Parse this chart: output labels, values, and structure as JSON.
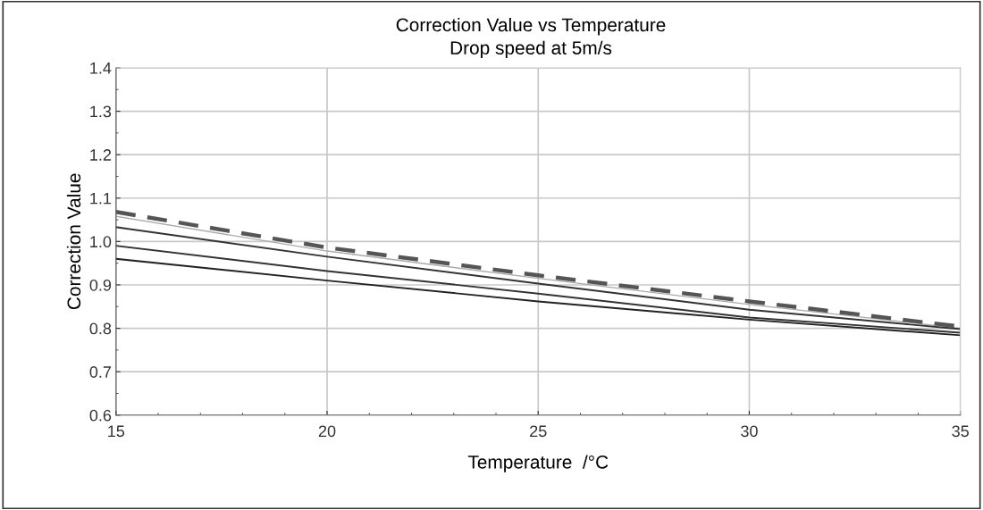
{
  "chart_data": {
    "type": "line",
    "title": "Correction Value vs Temperature",
    "subtitle": "Drop speed at 5m/s",
    "xlabel": "Temperature  /°C",
    "ylabel": "Correction Value",
    "x": [
      15,
      20,
      25,
      30,
      35
    ],
    "series": [
      {
        "color": "#aaaaaa",
        "line_style": "solid",
        "values": [
          1.058,
          0.978,
          0.915,
          0.855,
          0.8
        ]
      },
      {
        "color": "#555555",
        "line_style": "dashed",
        "values": [
          1.068,
          0.986,
          0.922,
          0.862,
          0.804
        ]
      },
      {
        "color": "#333333",
        "line_style": "solid",
        "values": [
          1.033,
          0.965,
          0.903,
          0.843,
          0.798
        ]
      },
      {
        "color": "#333333",
        "line_style": "solid",
        "values": [
          0.99,
          0.932,
          0.88,
          0.825,
          0.79
        ]
      },
      {
        "color": "#222222",
        "line_style": "solid",
        "values": [
          0.96,
          0.91,
          0.862,
          0.82,
          0.784
        ]
      }
    ],
    "xlim": [
      15,
      35
    ],
    "xticks": [
      15,
      20,
      25,
      30,
      35
    ],
    "ylim": [
      0.6,
      1.4
    ],
    "yticks": [
      {
        "value": 0.6,
        "label": "0.6"
      },
      {
        "value": 0.7,
        "label": "0.7"
      },
      {
        "value": 0.8,
        "label": "0.8"
      },
      {
        "value": 0.9,
        "label": "0.9"
      },
      {
        "value": 1.0,
        "label": "1.0"
      },
      {
        "value": 1.1,
        "label": "1.1"
      },
      {
        "value": 1.2,
        "label": "1.2"
      },
      {
        "value": 1.3,
        "label": "1.3"
      },
      {
        "value": 1.4,
        "label": "1.4"
      }
    ],
    "grid": true,
    "legend": false,
    "marker": "none"
  }
}
